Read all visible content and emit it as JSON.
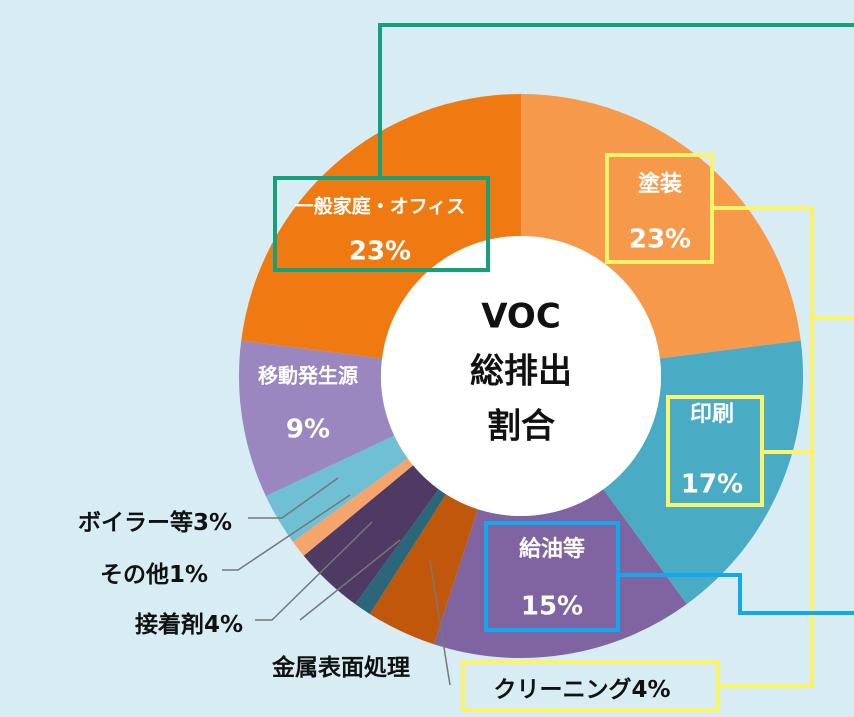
{
  "chart_data": {
    "type": "donut",
    "categories": [
      "塗装",
      "印刷",
      "給油等",
      "クリーニング",
      "金属表面処理",
      "接着剤",
      "その他",
      "ボイラー等",
      "移動発生源",
      "一般家庭・オフィス"
    ],
    "values": [
      23,
      17,
      15,
      4,
      1,
      4,
      1,
      3,
      9,
      23
    ],
    "value_labels": [
      "23%",
      "17%",
      "15%",
      "4%",
      null,
      "4%",
      "1%",
      "3%",
      "9%",
      "23%"
    ],
    "colors": [
      "#f7994a",
      "#4aabc5",
      "#8063a1",
      "#c0570b",
      "#2b6679",
      "#4e3a63",
      "#f5a56b",
      "#6fc0d4",
      "#9a87c0",
      "#f07a12"
    ],
    "center_text": [
      "VOC",
      "総排出",
      "割合"
    ]
  }
}
